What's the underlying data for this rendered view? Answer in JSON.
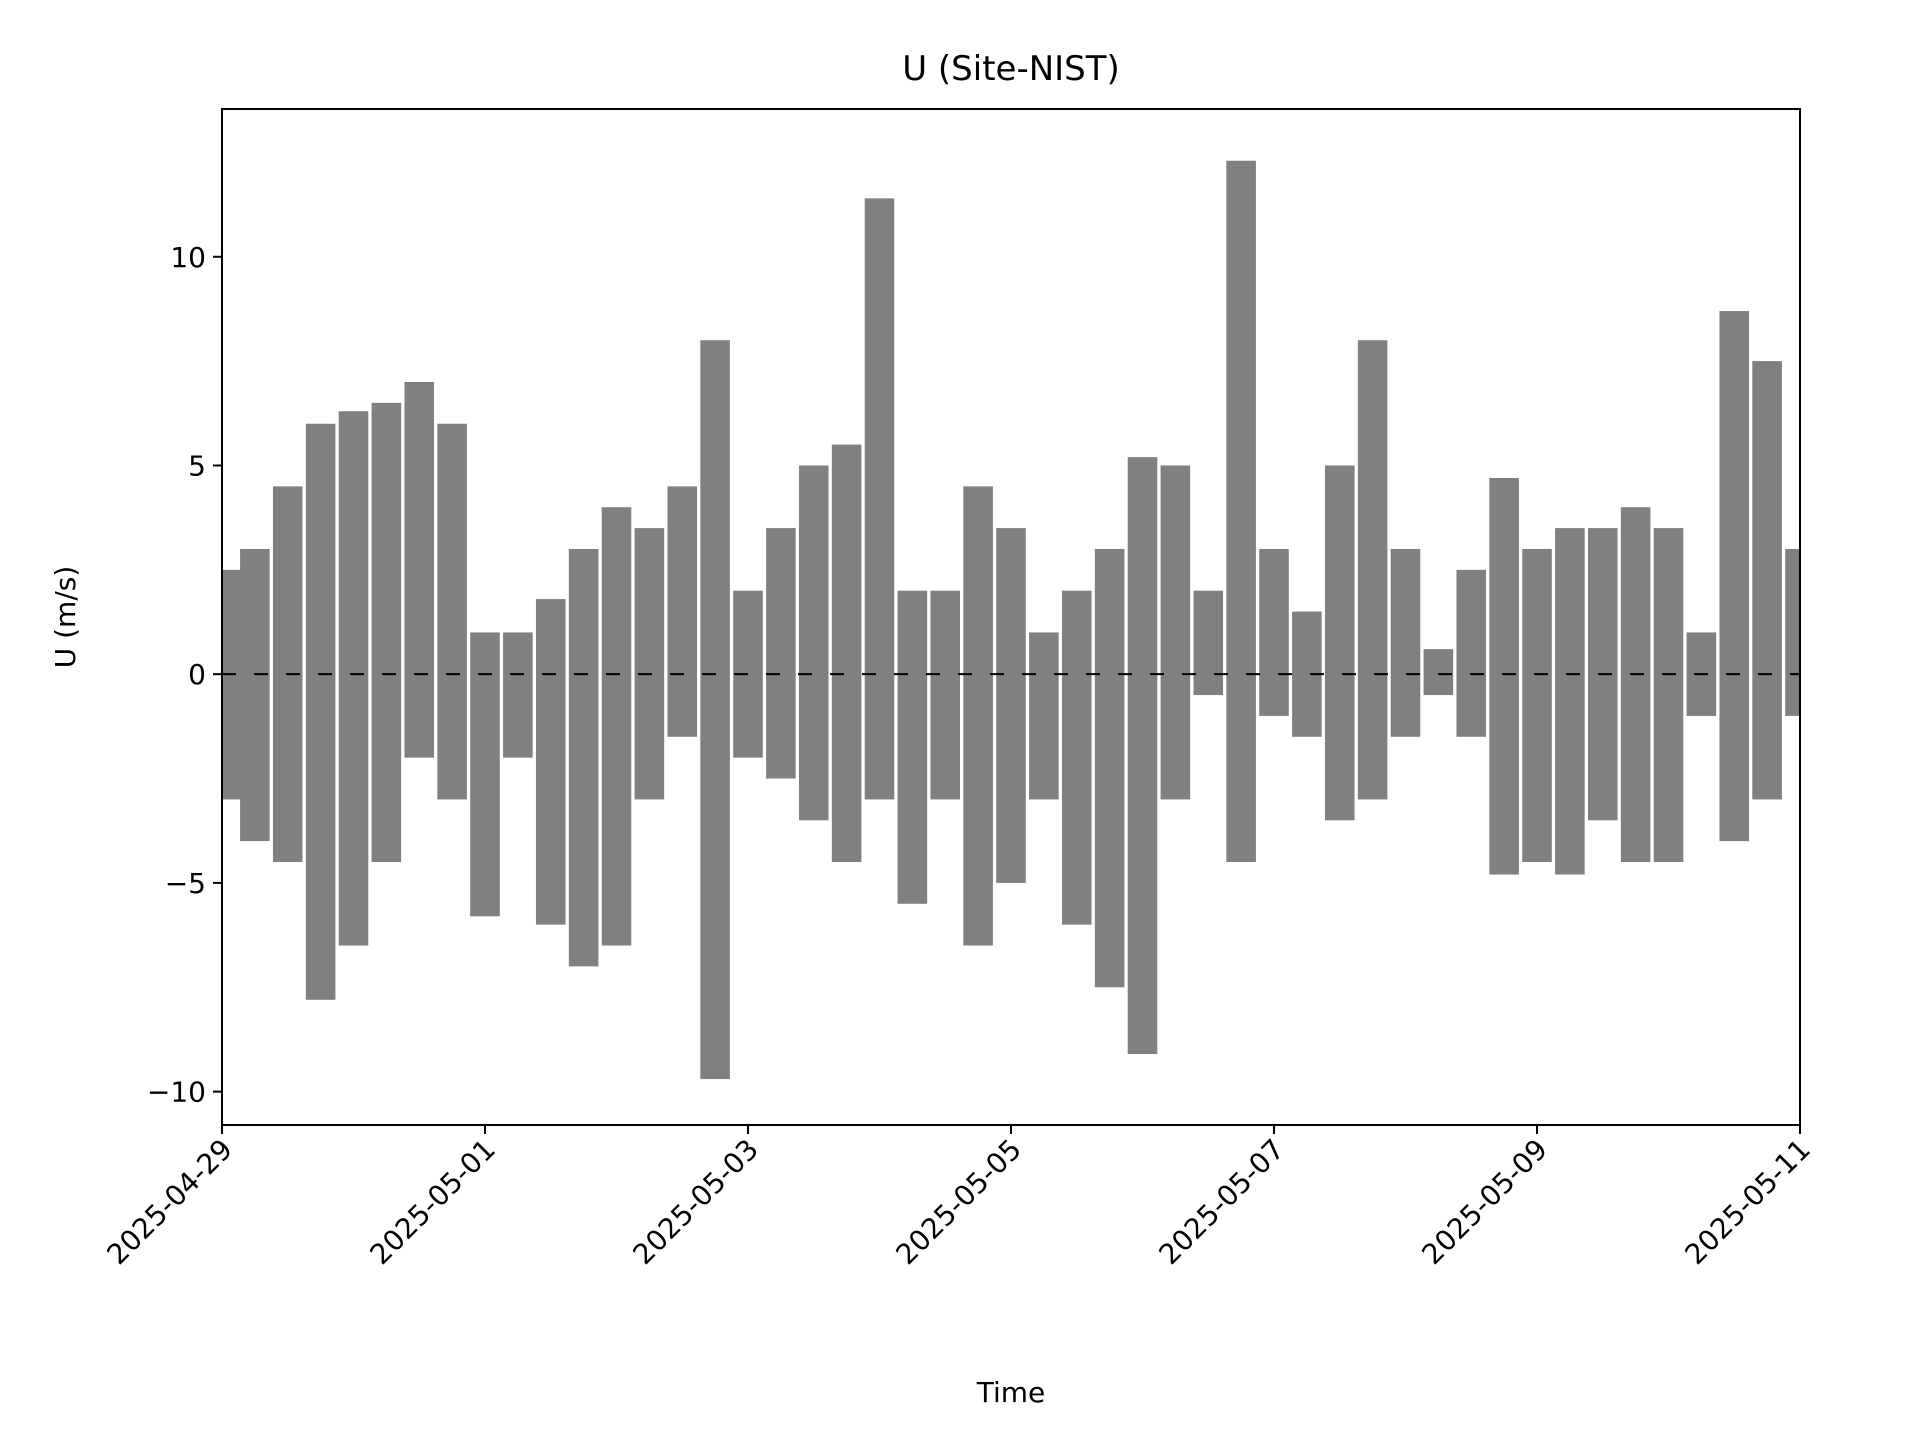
{
  "chart_data": {
    "type": "scatter",
    "title": "U (Site-NIST)",
    "x_label": "Time",
    "y_label": "U (m/s)",
    "x": [
      0,
      0.25,
      0.5,
      0.75,
      1,
      1.25,
      1.5,
      1.75,
      2,
      2.25,
      2.5,
      2.75,
      3,
      3.25,
      3.5,
      3.75,
      4,
      4.25,
      4.5,
      4.75,
      5,
      5.25,
      5.5,
      5.75,
      6,
      6.25,
      6.5,
      6.75,
      7,
      7.25,
      7.5,
      7.75,
      8,
      8.25,
      8.5,
      8.75,
      9,
      9.25,
      9.5,
      9.75,
      10,
      10.25,
      10.5,
      10.75,
      11,
      11.25,
      11.5,
      11.75,
      12
    ],
    "y_max": [
      2.5,
      3,
      4.5,
      6,
      6.3,
      6.5,
      7,
      6,
      1,
      1,
      1.8,
      3,
      4,
      3.5,
      4.5,
      8,
      2,
      3.5,
      5,
      5.5,
      11.4,
      2,
      2,
      4.5,
      3.5,
      1,
      2,
      3,
      5.2,
      5,
      2,
      12.3,
      3,
      1.5,
      5,
      8,
      3,
      0.6,
      2.5,
      4.7,
      3,
      3.5,
      3.5,
      4,
      3.5,
      1,
      8.7,
      7.5,
      3
    ],
    "y_min": [
      -3,
      -4,
      -4.5,
      -7.8,
      -6.5,
      -4.5,
      -2,
      -3,
      -5.8,
      -2,
      -6,
      -7,
      -6.5,
      -3,
      -1.5,
      -9.7,
      -2,
      -2.5,
      -3.5,
      -4.5,
      -3,
      -5.5,
      -3,
      -6.5,
      -5,
      -3,
      -6,
      -7.5,
      -9.1,
      -3,
      -0.5,
      -4.5,
      -1,
      -1.5,
      -3.5,
      -3,
      -1.5,
      -0.5,
      -1.5,
      -4.8,
      -4.5,
      -4.8,
      -3.5,
      -4.5,
      -4.5,
      -1,
      -4,
      -3,
      -1
    ],
    "color": "#808080",
    "hline": 0,
    "xlim": [
      0,
      12
    ],
    "xticks": [
      {
        "value": 0,
        "label": "2025-04-29"
      },
      {
        "value": 2,
        "label": "2025-05-01"
      },
      {
        "value": 4,
        "label": "2025-05-03"
      },
      {
        "value": 6,
        "label": "2025-05-05"
      },
      {
        "value": 8,
        "label": "2025-05-07"
      },
      {
        "value": 10,
        "label": "2025-05-09"
      },
      {
        "value": 12,
        "label": "2025-05-11"
      }
    ],
    "ylim": [
      -10.8,
      13.54
    ],
    "yticks": [
      {
        "value": -10,
        "label": "−10"
      },
      {
        "value": -5,
        "label": "−5"
      },
      0,
      5,
      10
    ]
  }
}
